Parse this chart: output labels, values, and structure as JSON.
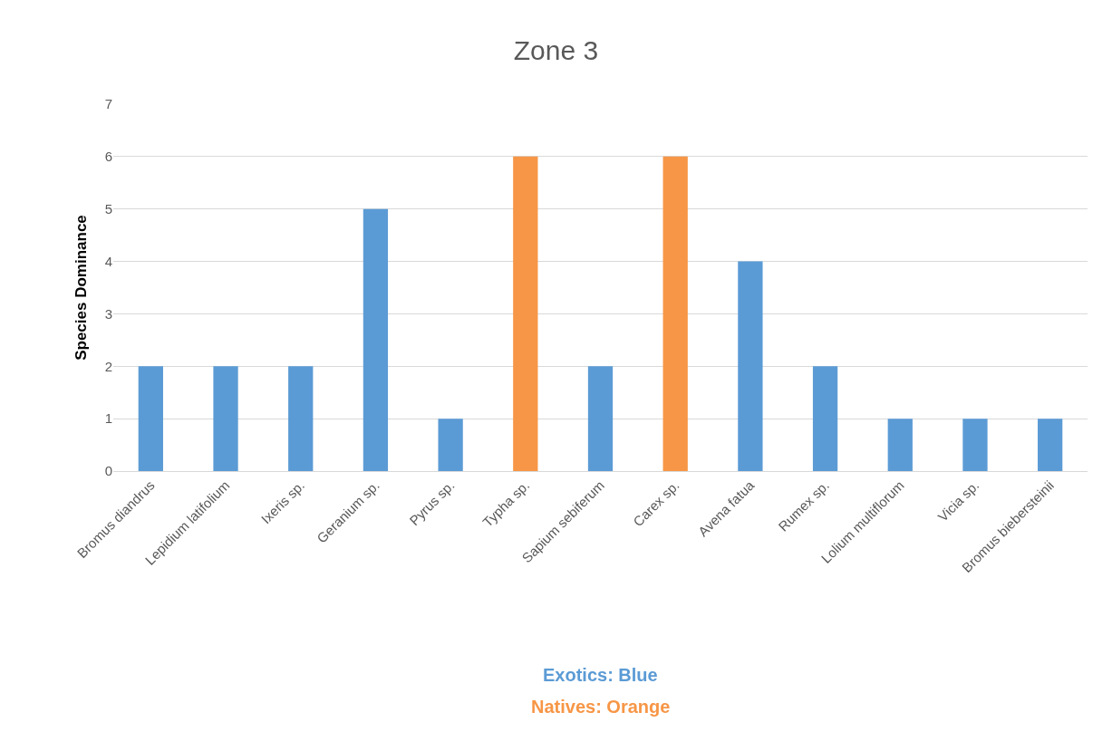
{
  "chart_data": {
    "type": "bar",
    "title": "Zone 3",
    "ylabel": "Species Dominance",
    "categories": [
      "Bromus diandrus",
      "Lepidium latifolium",
      "Ixeris sp.",
      "Geranium sp.",
      "Pyrus sp.",
      "Typha sp.",
      "Sapium sebiferum",
      "Carex sp.",
      "Avena fatua",
      "Rumex sp.",
      "Lolium multiflorum",
      "Vicia sp.",
      "Bromus biebersteinii"
    ],
    "values": [
      2,
      2,
      2,
      5,
      1,
      6,
      2,
      6,
      4,
      2,
      1,
      1,
      1
    ],
    "colors": [
      "#5b9bd5",
      "#5b9bd5",
      "#5b9bd5",
      "#5b9bd5",
      "#5b9bd5",
      "#f79646",
      "#5b9bd5",
      "#f79646",
      "#5b9bd5",
      "#5b9bd5",
      "#5b9bd5",
      "#5b9bd5",
      "#5b9bd5"
    ],
    "ylim": [
      0,
      7
    ],
    "yticks": [
      0,
      1,
      2,
      3,
      4,
      5,
      6,
      7
    ],
    "grid": "y",
    "legend": false,
    "annotations": [
      "Exotics: Blue",
      "Natives: Orange"
    ]
  }
}
